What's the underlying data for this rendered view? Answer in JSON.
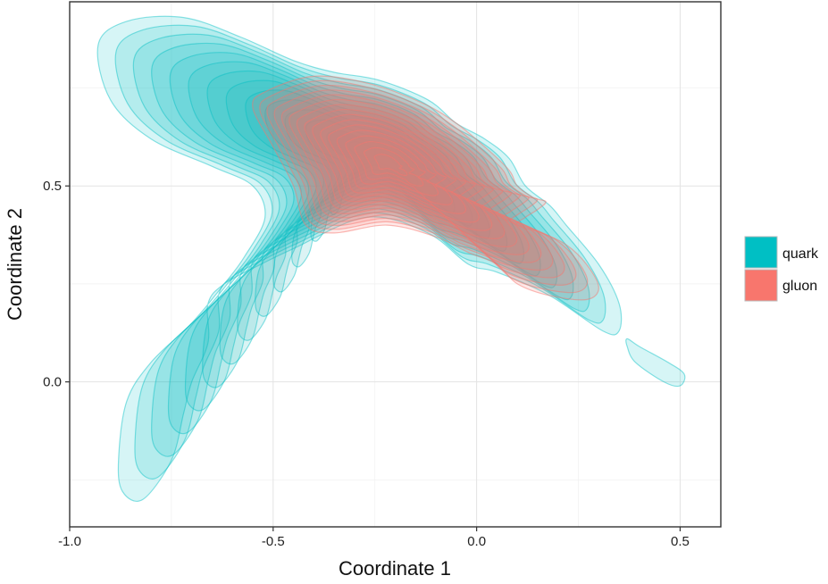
{
  "chart_data": {
    "type": "density-contour",
    "xlabel": "Coordinate 1",
    "ylabel": "Coordinate 2",
    "xlim": [
      -1.0,
      0.6
    ],
    "ylim": [
      -0.37,
      0.97
    ],
    "x_ticks": [
      -1.0,
      -0.5,
      0.0,
      0.5
    ],
    "x_tick_labels": [
      "-1.0",
      "-0.5",
      "0.0",
      "0.5"
    ],
    "y_ticks": [
      0.0,
      0.5
    ],
    "y_tick_labels": [
      "0.0",
      "0.5"
    ],
    "grid": true,
    "legend_position": "right",
    "series": [
      {
        "name": "quark",
        "color": "#00BFC4",
        "peak": [
          -0.25,
          0.58
        ],
        "outer_region": [
          [
            -0.93,
            0.86
          ],
          [
            -0.86,
            0.92
          ],
          [
            -0.72,
            0.93
          ],
          [
            -0.58,
            0.88
          ],
          [
            -0.45,
            0.82
          ],
          [
            -0.35,
            0.79
          ],
          [
            -0.24,
            0.77
          ],
          [
            -0.12,
            0.72
          ],
          [
            -0.05,
            0.66
          ],
          [
            0.02,
            0.62
          ],
          [
            0.08,
            0.57
          ],
          [
            0.12,
            0.5
          ],
          [
            0.18,
            0.45
          ],
          [
            0.22,
            0.4
          ],
          [
            0.3,
            0.3
          ],
          [
            0.35,
            0.2
          ],
          [
            0.35,
            0.13
          ],
          [
            0.31,
            0.13
          ],
          [
            0.18,
            0.22
          ],
          [
            0.05,
            0.28
          ],
          [
            -0.02,
            0.3
          ],
          [
            -0.12,
            0.38
          ],
          [
            -0.27,
            0.42
          ],
          [
            -0.45,
            0.34
          ],
          [
            -0.53,
            0.3
          ],
          [
            -0.62,
            0.25
          ],
          [
            -0.66,
            0.2
          ],
          [
            -0.66,
            0.1
          ],
          [
            -0.7,
            0.0
          ],
          [
            -0.72,
            -0.08
          ],
          [
            -0.75,
            -0.2
          ],
          [
            -0.82,
            -0.3
          ],
          [
            -0.87,
            -0.28
          ],
          [
            -0.88,
            -0.2
          ],
          [
            -0.86,
            -0.05
          ],
          [
            -0.8,
            0.05
          ],
          [
            -0.7,
            0.15
          ],
          [
            -0.62,
            0.25
          ],
          [
            -0.57,
            0.32
          ],
          [
            -0.52,
            0.42
          ],
          [
            -0.55,
            0.5
          ],
          [
            -0.65,
            0.55
          ],
          [
            -0.8,
            0.62
          ],
          [
            -0.9,
            0.72
          ]
        ],
        "small_region": [
          [
            0.37,
            0.11
          ],
          [
            0.4,
            0.09
          ],
          [
            0.47,
            0.05
          ],
          [
            0.51,
            0.02
          ],
          [
            0.5,
            -0.01
          ],
          [
            0.46,
            0.0
          ],
          [
            0.39,
            0.05
          ],
          [
            0.37,
            0.09
          ]
        ],
        "levels": 14
      },
      {
        "name": "gluon",
        "color": "#F8766D",
        "peak": [
          -0.22,
          0.56
        ],
        "outer_region": [
          [
            -0.52,
            0.74
          ],
          [
            -0.4,
            0.78
          ],
          [
            -0.26,
            0.76
          ],
          [
            -0.13,
            0.71
          ],
          [
            -0.05,
            0.66
          ],
          [
            0.02,
            0.6
          ],
          [
            0.08,
            0.54
          ],
          [
            0.1,
            0.5
          ],
          [
            0.14,
            0.47
          ],
          [
            0.17,
            0.46
          ],
          [
            0.15,
            0.44
          ],
          [
            0.12,
            0.42
          ],
          [
            0.1,
            0.4
          ],
          [
            0.16,
            0.38
          ],
          [
            0.22,
            0.35
          ],
          [
            0.27,
            0.3
          ],
          [
            0.3,
            0.24
          ],
          [
            0.27,
            0.21
          ],
          [
            0.18,
            0.22
          ],
          [
            0.1,
            0.25
          ],
          [
            0.05,
            0.3
          ],
          [
            -0.02,
            0.33
          ],
          [
            -0.1,
            0.37
          ],
          [
            -0.22,
            0.4
          ],
          [
            -0.35,
            0.38
          ],
          [
            -0.42,
            0.4
          ],
          [
            -0.45,
            0.5
          ],
          [
            -0.5,
            0.6
          ],
          [
            -0.55,
            0.7
          ]
        ],
        "levels": 16
      }
    ]
  }
}
